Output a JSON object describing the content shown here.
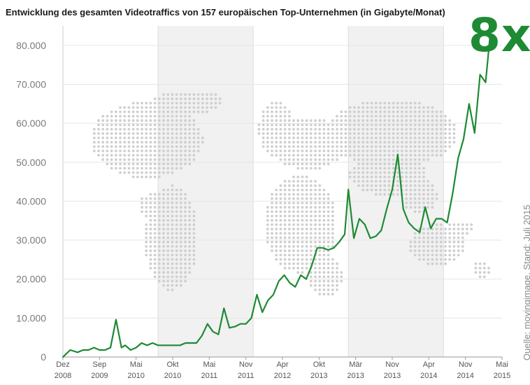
{
  "title": "Entwicklung des gesamten Videotraffics von 157 europäischen Top-Unternehmen (in Gigabyte/Monat)",
  "badge": "8x",
  "source": "Quelle: movingimage, Stand: Juli 2015",
  "background_image": "world-map-dots",
  "colors": {
    "line": "#1e8a34",
    "badge": "#1e8a34",
    "map_dots": "#cfcfcf",
    "shade": "#f1f1f1"
  },
  "chart_data": {
    "type": "line",
    "ylim": [
      0,
      85000
    ],
    "yticks": [
      {
        "v": 0,
        "label": "0"
      },
      {
        "v": 10000,
        "label": "10.000"
      },
      {
        "v": 20000,
        "label": "20.000"
      },
      {
        "v": 30000,
        "label": "30.000"
      },
      {
        "v": 40000,
        "label": "40.000"
      },
      {
        "v": 50000,
        "label": "50.000"
      },
      {
        "v": 60000,
        "label": "60.000"
      },
      {
        "v": 70000,
        "label": "70.000"
      },
      {
        "v": 80000,
        "label": "80.000"
      }
    ],
    "xticks": [
      {
        "label": "Dez",
        "year": "2008"
      },
      {
        "label": "Sep",
        "year": "2009"
      },
      {
        "label": "Mai",
        "year": "2010"
      },
      {
        "label": "Okt",
        "year": "2010"
      },
      {
        "label": "Mai",
        "year": "2011"
      },
      {
        "label": "Nov",
        "year": "2011"
      },
      {
        "label": "Apr",
        "year": "2012"
      },
      {
        "label": "Okt",
        "year": "2013"
      },
      {
        "label": "Mär",
        "year": "2013"
      },
      {
        "label": "Nov",
        "year": "2013"
      },
      {
        "label": "Apr",
        "year": "2014"
      },
      {
        "label": "Nov",
        "year": "2014"
      },
      {
        "label": "Mai",
        "year": "2015"
      }
    ],
    "shaded_ranges": [
      [
        2.6,
        5.2
      ],
      [
        7.8,
        10.4
      ]
    ],
    "x": [
      0,
      0.2,
      0.4,
      0.55,
      0.7,
      0.85,
      1.0,
      1.15,
      1.3,
      1.45,
      1.6,
      1.7,
      1.85,
      2.0,
      2.15,
      2.3,
      2.45,
      2.6,
      2.75,
      2.9,
      3.05,
      3.2,
      3.35,
      3.5,
      3.65,
      3.8,
      3.95,
      4.1,
      4.25,
      4.4,
      4.55,
      4.7,
      4.85,
      5.0,
      5.15,
      5.3,
      5.45,
      5.6,
      5.75,
      5.9,
      6.05,
      6.2,
      6.35,
      6.5,
      6.65,
      6.8,
      6.95,
      7.1,
      7.25,
      7.4,
      7.55,
      7.7,
      7.8,
      7.95,
      8.1,
      8.25,
      8.4,
      8.55,
      8.7,
      8.85,
      9.0,
      9.15,
      9.3,
      9.45,
      9.6,
      9.75,
      9.9,
      10.05,
      10.2,
      10.35,
      10.5,
      10.65,
      10.8,
      10.95,
      11.1,
      11.25,
      11.4,
      11.55,
      11.7,
      11.85,
      12.0,
      12.15,
      12.3
    ],
    "series": [
      {
        "values": [
          0,
          1800,
          1200,
          1800,
          1800,
          2400,
          1800,
          1800,
          2400,
          9600,
          2400,
          3000,
          1800,
          2400,
          3600,
          3000,
          3600,
          3000,
          3000,
          3000,
          3000,
          3000,
          3600,
          3600,
          3600,
          5500,
          8500,
          6500,
          5800,
          12500,
          7500,
          7800,
          8500,
          8500,
          10000,
          16000,
          11500,
          14500,
          16000,
          19500,
          21000,
          19000,
          18000,
          21000,
          20000,
          23500,
          28000,
          28000,
          27500,
          28000,
          29500,
          31500,
          43000,
          30500,
          35500,
          34000,
          30500,
          31000,
          32500,
          38000,
          43000,
          52000,
          38000,
          34500,
          33000,
          32000,
          38500,
          33000,
          35500,
          35500,
          34500,
          42000,
          51000,
          56000,
          65000,
          57500,
          72500,
          70500,
          85000,
          null,
          null,
          null,
          null
        ]
      }
    ]
  }
}
